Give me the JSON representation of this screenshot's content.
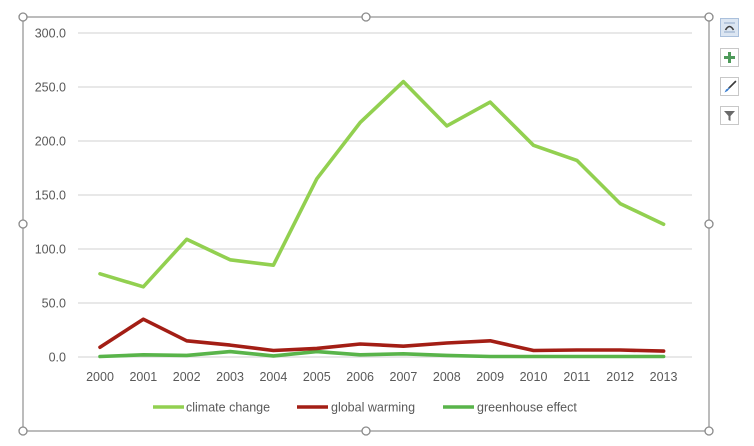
{
  "chart_data": {
    "type": "line",
    "title": "",
    "xlabel": "",
    "ylabel": "",
    "x": [
      "2000",
      "2001",
      "2002",
      "2003",
      "2004",
      "2005",
      "2006",
      "2007",
      "2008",
      "2009",
      "2010",
      "2011",
      "2012",
      "2013"
    ],
    "ylim": [
      0,
      300
    ],
    "yticks": [
      0,
      50,
      100,
      150,
      200,
      250,
      300
    ],
    "ytick_labels": [
      "0.0",
      "50.0",
      "100.0",
      "150.0",
      "200.0",
      "250.0",
      "300.0"
    ],
    "grid": true,
    "legend_position": "bottom",
    "series": [
      {
        "name": "climate change",
        "color": "#92d050",
        "values": [
          77,
          65,
          109,
          90,
          85,
          165,
          217,
          255,
          214,
          236,
          196,
          182,
          142,
          123
        ]
      },
      {
        "name": "global warming",
        "color": "#a31e15",
        "values": [
          9,
          35,
          15,
          11,
          6,
          8,
          12,
          10,
          13,
          15,
          6,
          6.5,
          6.5,
          5.5
        ]
      },
      {
        "name": "greenhouse effect",
        "color": "#59b44a",
        "values": [
          0.5,
          2,
          1.5,
          5,
          1,
          5,
          2,
          3,
          1.5,
          0.5,
          0.5,
          0.5,
          0.5,
          0.5
        ]
      }
    ]
  },
  "side_buttons": [
    {
      "name": "layout-options",
      "label": "Layout Options",
      "icon": "layout-options-icon"
    },
    {
      "name": "chart-elements",
      "label": "Chart Elements",
      "icon": "plus-icon"
    },
    {
      "name": "chart-styles",
      "label": "Chart Styles",
      "icon": "paintbrush-icon"
    },
    {
      "name": "chart-filters",
      "label": "Chart Filters",
      "icon": "funnel-icon"
    }
  ],
  "colors": {
    "frame": "#a6a6a6",
    "gridline": "#d9d9d9",
    "axis_text": "#595959"
  }
}
